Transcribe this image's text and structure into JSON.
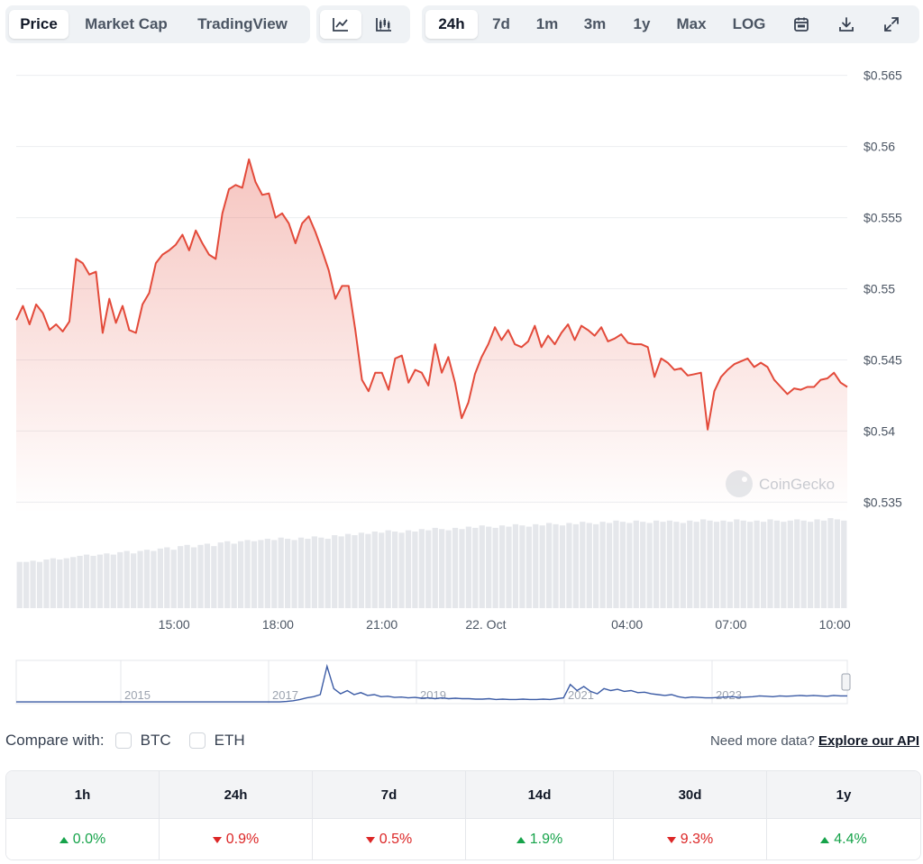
{
  "tabs_left": [
    {
      "label": "Price",
      "active": true
    },
    {
      "label": "Market Cap",
      "active": false
    },
    {
      "label": "TradingView",
      "active": false
    }
  ],
  "tabs_chart_type": [
    {
      "icon": "line-chart-icon",
      "active": true
    },
    {
      "icon": "candlestick-chart-icon",
      "active": false
    }
  ],
  "tabs_range": [
    {
      "label": "24h",
      "active": true
    },
    {
      "label": "7d",
      "active": false
    },
    {
      "label": "1m",
      "active": false
    },
    {
      "label": "3m",
      "active": false
    },
    {
      "label": "1y",
      "active": false
    },
    {
      "label": "Max",
      "active": false
    },
    {
      "label": "LOG",
      "active": false
    }
  ],
  "tool_icons": [
    "calendar-icon",
    "download-icon",
    "expand-icon"
  ],
  "colors": {
    "line": "#e34a3a",
    "volume": "#e5e7eb",
    "overview_line": "#3b5ba5",
    "grid": "#eceef1"
  },
  "watermark": "CoinGecko",
  "chart_data": {
    "type": "line",
    "y_ticks": [
      "$0.565",
      "$0.56",
      "$0.555",
      "$0.55",
      "$0.545",
      "$0.54",
      "$0.535"
    ],
    "ylim": [
      0.5342,
      0.5665
    ],
    "x_ticks": [
      {
        "label": "15:00",
        "pos": 0.19
      },
      {
        "label": "18:00",
        "pos": 0.315
      },
      {
        "label": "21:00",
        "pos": 0.44
      },
      {
        "label": "22. Oct",
        "pos": 0.565
      },
      {
        "label": "04:00",
        "pos": 0.735
      },
      {
        "label": "07:00",
        "pos": 0.86
      },
      {
        "label": "10:00",
        "pos": 0.985
      }
    ],
    "price": [
      0.5478,
      0.5488,
      0.5475,
      0.5489,
      0.5483,
      0.5471,
      0.5475,
      0.547,
      0.5477,
      0.5521,
      0.5518,
      0.551,
      0.5512,
      0.5469,
      0.5493,
      0.5476,
      0.5488,
      0.5471,
      0.5469,
      0.5489,
      0.5497,
      0.5518,
      0.5524,
      0.5527,
      0.5531,
      0.5538,
      0.5527,
      0.5541,
      0.5532,
      0.5524,
      0.5521,
      0.5553,
      0.557,
      0.5573,
      0.5571,
      0.5591,
      0.5575,
      0.5566,
      0.5567,
      0.555,
      0.5553,
      0.5546,
      0.5532,
      0.5546,
      0.5551,
      0.554,
      0.5527,
      0.5513,
      0.5493,
      0.5502,
      0.5502,
      0.5471,
      0.5436,
      0.5428,
      0.5441,
      0.5441,
      0.5429,
      0.5451,
      0.5453,
      0.5434,
      0.5443,
      0.5441,
      0.5432,
      0.5461,
      0.5441,
      0.5452,
      0.5434,
      0.5409,
      0.542,
      0.544,
      0.5452,
      0.5461,
      0.5473,
      0.5464,
      0.5471,
      0.5461,
      0.5459,
      0.5463,
      0.5474,
      0.5459,
      0.5467,
      0.5461,
      0.5469,
      0.5475,
      0.5464,
      0.5474,
      0.5471,
      0.5467,
      0.5473,
      0.5463,
      0.5465,
      0.5468,
      0.5462,
      0.5461,
      0.5461,
      0.5459,
      0.5438,
      0.5451,
      0.5448,
      0.5443,
      0.5444,
      0.5439,
      0.544,
      0.5441,
      0.5401,
      0.5428,
      0.5438,
      0.5443,
      0.5447,
      0.5449,
      0.5451,
      0.5445,
      0.5448,
      0.5445,
      0.5436,
      0.5431,
      0.5426,
      0.543,
      0.5429,
      0.5431,
      0.5431,
      0.5436,
      0.5437,
      0.5441,
      0.5434,
      0.5431
    ],
    "volume": [
      0.38,
      0.38,
      0.39,
      0.38,
      0.4,
      0.41,
      0.4,
      0.41,
      0.42,
      0.43,
      0.44,
      0.43,
      0.44,
      0.45,
      0.44,
      0.46,
      0.47,
      0.45,
      0.47,
      0.48,
      0.47,
      0.49,
      0.5,
      0.48,
      0.51,
      0.52,
      0.5,
      0.52,
      0.53,
      0.51,
      0.54,
      0.55,
      0.53,
      0.55,
      0.56,
      0.55,
      0.56,
      0.57,
      0.56,
      0.58,
      0.57,
      0.56,
      0.58,
      0.57,
      0.59,
      0.58,
      0.57,
      0.6,
      0.59,
      0.61,
      0.6,
      0.62,
      0.61,
      0.63,
      0.62,
      0.64,
      0.63,
      0.62,
      0.64,
      0.63,
      0.65,
      0.64,
      0.66,
      0.65,
      0.64,
      0.66,
      0.65,
      0.67,
      0.66,
      0.68,
      0.67,
      0.66,
      0.68,
      0.67,
      0.69,
      0.68,
      0.67,
      0.69,
      0.68,
      0.7,
      0.69,
      0.68,
      0.7,
      0.69,
      0.71,
      0.7,
      0.69,
      0.71,
      0.7,
      0.72,
      0.71,
      0.7,
      0.72,
      0.71,
      0.7,
      0.72,
      0.71,
      0.72,
      0.71,
      0.7,
      0.72,
      0.71,
      0.73,
      0.72,
      0.71,
      0.72,
      0.71,
      0.73,
      0.72,
      0.71,
      0.72,
      0.71,
      0.73,
      0.72,
      0.71,
      0.72,
      0.73,
      0.72,
      0.71,
      0.73,
      0.72,
      0.74,
      0.73,
      0.72
    ],
    "overview_years": [
      "2015",
      "2017",
      "2019",
      "2021",
      "2023"
    ],
    "overview": [
      0.02,
      0.02,
      0.02,
      0.02,
      0.02,
      0.02,
      0.02,
      0.02,
      0.02,
      0.02,
      0.02,
      0.02,
      0.02,
      0.02,
      0.02,
      0.02,
      0.02,
      0.02,
      0.02,
      0.02,
      0.02,
      0.02,
      0.02,
      0.02,
      0.02,
      0.02,
      0.02,
      0.02,
      0.02,
      0.02,
      0.02,
      0.02,
      0.02,
      0.02,
      0.02,
      0.02,
      0.02,
      0.02,
      0.02,
      0.02,
      0.03,
      0.05,
      0.08,
      0.12,
      0.15,
      0.2,
      0.9,
      0.35,
      0.22,
      0.3,
      0.2,
      0.25,
      0.18,
      0.2,
      0.15,
      0.16,
      0.13,
      0.14,
      0.12,
      0.13,
      0.11,
      0.12,
      0.1,
      0.12,
      0.1,
      0.11,
      0.1,
      0.1,
      0.09,
      0.09,
      0.1,
      0.08,
      0.09,
      0.08,
      0.08,
      0.09,
      0.08,
      0.08,
      0.09,
      0.08,
      0.1,
      0.12,
      0.45,
      0.3,
      0.4,
      0.28,
      0.22,
      0.35,
      0.3,
      0.33,
      0.28,
      0.3,
      0.25,
      0.26,
      0.22,
      0.2,
      0.18,
      0.2,
      0.15,
      0.12,
      0.14,
      0.13,
      0.12,
      0.12,
      0.13,
      0.14,
      0.15,
      0.13,
      0.14,
      0.15,
      0.17,
      0.16,
      0.15,
      0.17,
      0.16,
      0.17,
      0.18,
      0.17,
      0.18,
      0.17,
      0.16,
      0.18,
      0.17,
      0.17
    ]
  },
  "compare": {
    "label": "Compare with:",
    "options": [
      "BTC",
      "ETH"
    ]
  },
  "api": {
    "text": "Need more data?",
    "link": "Explore our API"
  },
  "performance": [
    {
      "period": "1h",
      "value": "0.0%",
      "dir": "up"
    },
    {
      "period": "24h",
      "value": "0.9%",
      "dir": "down"
    },
    {
      "period": "7d",
      "value": "0.5%",
      "dir": "down"
    },
    {
      "period": "14d",
      "value": "1.9%",
      "dir": "up"
    },
    {
      "period": "30d",
      "value": "9.3%",
      "dir": "down"
    },
    {
      "period": "1y",
      "value": "4.4%",
      "dir": "up"
    }
  ]
}
